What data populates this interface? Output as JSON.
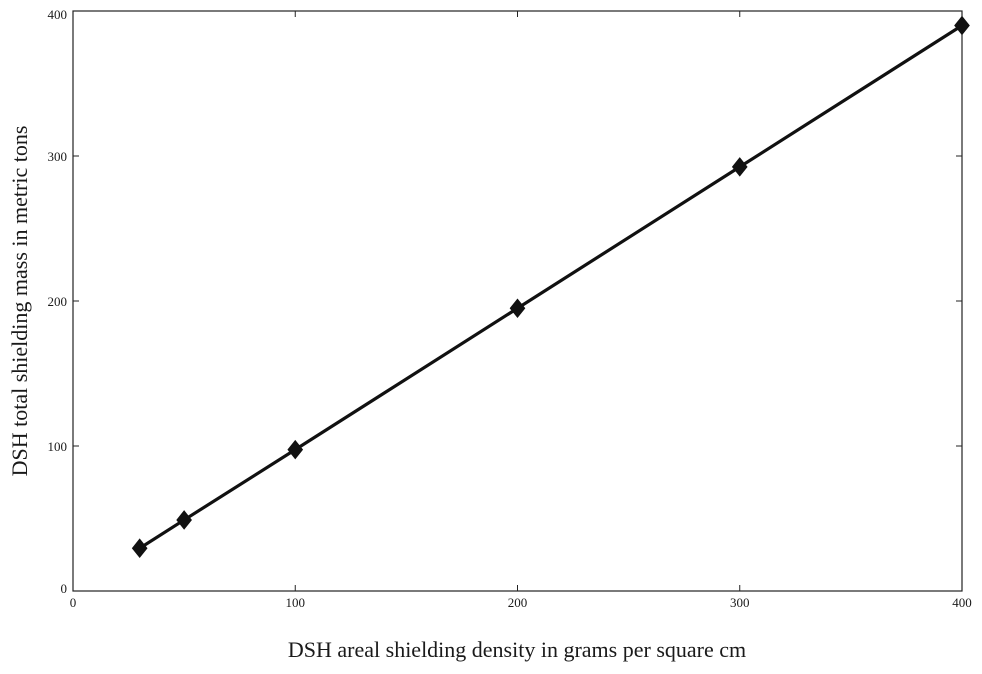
{
  "chart_data": {
    "type": "line",
    "title": "",
    "xlabel": "DSH areal shielding density in grams per square cm",
    "ylabel": "DSH total shielding mass in metric tons",
    "xlim": [
      0,
      400
    ],
    "ylim": [
      0,
      400
    ],
    "xticks": [
      0,
      100,
      200,
      300,
      400
    ],
    "yticks": [
      0,
      100,
      200,
      300,
      400
    ],
    "xtick_labels": [
      "0",
      "100",
      "200",
      "300",
      "400"
    ],
    "ytick_labels": [
      "0",
      "100",
      "200",
      "300",
      "400"
    ],
    "grid": false,
    "series": [
      {
        "color": "#111111",
        "marker": "diamond",
        "x": [
          30,
          50,
          100,
          200,
          300,
          400
        ],
        "y": [
          29.5,
          49,
          97.5,
          195,
          292.5,
          390
        ]
      }
    ]
  }
}
